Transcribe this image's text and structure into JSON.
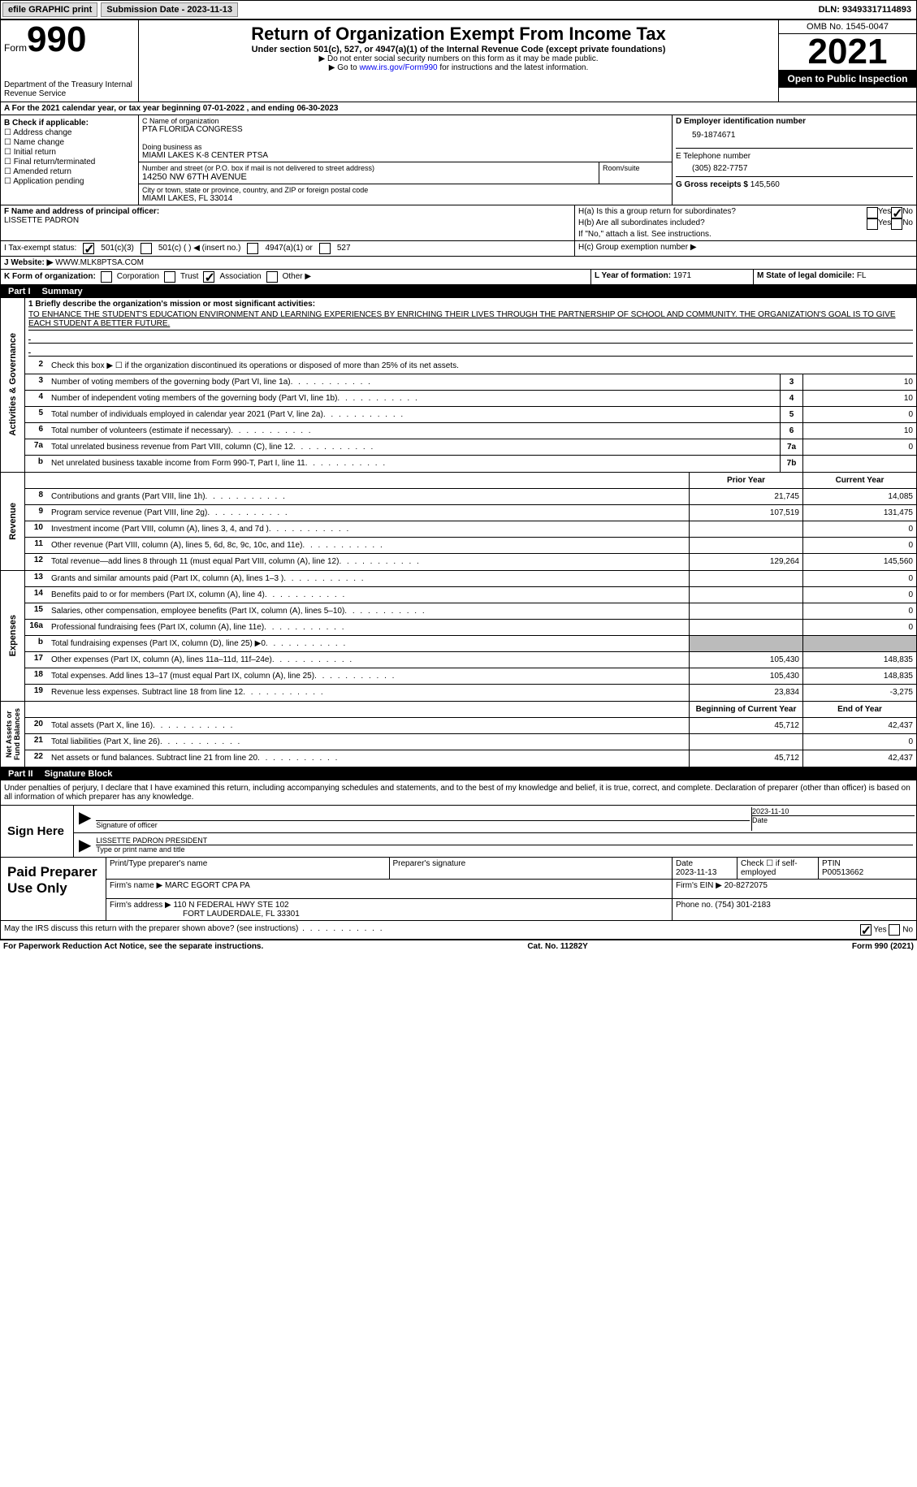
{
  "topbar": {
    "efile": "efile GRAPHIC print",
    "submission": "Submission Date - 2023-11-13",
    "dln": "DLN: 93493317114893"
  },
  "header": {
    "form_word": "Form",
    "form_num": "990",
    "dept": "Department of the Treasury\nInternal Revenue Service",
    "title": "Return of Organization Exempt From Income Tax",
    "sub1": "Under section 501(c), 527, or 4947(a)(1) of the Internal Revenue Code (except private foundations)",
    "sub2": "▶ Do not enter social security numbers on this form as it may be made public.",
    "sub3_pre": "▶ Go to ",
    "sub3_link": "www.irs.gov/Form990",
    "sub3_post": " for instructions and the latest information.",
    "omb": "OMB No. 1545-0047",
    "year": "2021",
    "open": "Open to Public Inspection"
  },
  "a_row": {
    "text": "A For the 2021 calendar year, or tax year beginning 07-01-2022    , and ending 06-30-2023"
  },
  "b": {
    "label": "B Check if applicable:",
    "opts": [
      "Address change",
      "Name change",
      "Initial return",
      "Final return/terminated",
      "Amended return",
      "Application pending"
    ]
  },
  "c": {
    "label": "C Name of organization",
    "org": "PTA FLORIDA CONGRESS",
    "dba_lbl": "Doing business as",
    "dba": "MIAMI LAKES K-8 CENTER PTSA",
    "addr_lbl": "Number and street (or P.O. box if mail is not delivered to street address)",
    "room_lbl": "Room/suite",
    "addr": "14250 NW 67TH AVENUE",
    "city_lbl": "City or town, state or province, country, and ZIP or foreign postal code",
    "city": "MIAMI LAKES, FL  33014"
  },
  "d": {
    "label": "D Employer identification number",
    "val": "59-1874671"
  },
  "e": {
    "label": "E Telephone number",
    "val": "(305) 822-7757"
  },
  "g": {
    "label": "G Gross receipts $",
    "val": "145,560"
  },
  "f": {
    "label": "F  Name and address of principal officer:",
    "name": "LISSETTE PADRON"
  },
  "h": {
    "a": "H(a)  Is this a group return for subordinates?",
    "b": "H(b)  Are all subordinates included?",
    "b_note": "If \"No,\" attach a list. See instructions.",
    "c": "H(c)  Group exemption number ▶",
    "yes": "Yes",
    "no": "No"
  },
  "i": {
    "label": "I  Tax-exempt status:",
    "o1": "501(c)(3)",
    "o2": "501(c) (  ) ◀ (insert no.)",
    "o3": "4947(a)(1) or",
    "o4": "527"
  },
  "j": {
    "label": "J  Website: ▶",
    "val": "WWW.MLK8PTSA.COM"
  },
  "k": {
    "label": "K Form of organization:",
    "o1": "Corporation",
    "o2": "Trust",
    "o3": "Association",
    "o4": "Other ▶"
  },
  "l": {
    "label": "L Year of formation:",
    "val": "1971"
  },
  "m": {
    "label": "M State of legal domicile:",
    "val": "FL"
  },
  "part1": {
    "num": "Part I",
    "title": "Summary"
  },
  "summary": {
    "q1": "1  Briefly describe the organization's mission or most significant activities:",
    "mission": "TO ENHANCE THE STUDENT'S EDUCATION ENVIRONMENT AND LEARNING EXPERIENCES BY ENRICHING THEIR LIVES THROUGH THE PARTNERSHIP OF SCHOOL AND COMMUNITY. THE ORGANIZATION'S GOAL IS TO GIVE EACH STUDENT A BETTER FUTURE.",
    "q2": "Check this box ▶ ☐ if the organization discontinued its operations or disposed of more than 25% of its net assets.",
    "lines": [
      {
        "n": "3",
        "t": "Number of voting members of the governing body (Part VI, line 1a)",
        "box": "3",
        "v": "10"
      },
      {
        "n": "4",
        "t": "Number of independent voting members of the governing body (Part VI, line 1b)",
        "box": "4",
        "v": "10"
      },
      {
        "n": "5",
        "t": "Total number of individuals employed in calendar year 2021 (Part V, line 2a)",
        "box": "5",
        "v": "0"
      },
      {
        "n": "6",
        "t": "Total number of volunteers (estimate if necessary)",
        "box": "6",
        "v": "10"
      },
      {
        "n": "7a",
        "t": "Total unrelated business revenue from Part VIII, column (C), line 12",
        "box": "7a",
        "v": "0"
      },
      {
        "n": "b",
        "t": "Net unrelated business taxable income from Form 990-T, Part I, line 11",
        "box": "7b",
        "v": ""
      }
    ],
    "col_prior": "Prior Year",
    "col_curr": "Current Year",
    "revenue": [
      {
        "n": "8",
        "t": "Contributions and grants (Part VIII, line 1h)",
        "p": "21,745",
        "c": "14,085"
      },
      {
        "n": "9",
        "t": "Program service revenue (Part VIII, line 2g)",
        "p": "107,519",
        "c": "131,475"
      },
      {
        "n": "10",
        "t": "Investment income (Part VIII, column (A), lines 3, 4, and 7d )",
        "p": "",
        "c": "0"
      },
      {
        "n": "11",
        "t": "Other revenue (Part VIII, column (A), lines 5, 6d, 8c, 9c, 10c, and 11e)",
        "p": "",
        "c": "0"
      },
      {
        "n": "12",
        "t": "Total revenue—add lines 8 through 11 (must equal Part VIII, column (A), line 12)",
        "p": "129,264",
        "c": "145,560"
      }
    ],
    "expenses": [
      {
        "n": "13",
        "t": "Grants and similar amounts paid (Part IX, column (A), lines 1–3 )",
        "p": "",
        "c": "0"
      },
      {
        "n": "14",
        "t": "Benefits paid to or for members (Part IX, column (A), line 4)",
        "p": "",
        "c": "0"
      },
      {
        "n": "15",
        "t": "Salaries, other compensation, employee benefits (Part IX, column (A), lines 5–10)",
        "p": "",
        "c": "0"
      },
      {
        "n": "16a",
        "t": "Professional fundraising fees (Part IX, column (A), line 11e)",
        "p": "",
        "c": "0"
      },
      {
        "n": "b",
        "t": "Total fundraising expenses (Part IX, column (D), line 25) ▶0",
        "p": "grey",
        "c": "grey"
      },
      {
        "n": "17",
        "t": "Other expenses (Part IX, column (A), lines 11a–11d, 11f–24e)",
        "p": "105,430",
        "c": "148,835"
      },
      {
        "n": "18",
        "t": "Total expenses. Add lines 13–17 (must equal Part IX, column (A), line 25)",
        "p": "105,430",
        "c": "148,835"
      },
      {
        "n": "19",
        "t": "Revenue less expenses. Subtract line 18 from line 12",
        "p": "23,834",
        "c": "-3,275"
      }
    ],
    "col_beg": "Beginning of Current Year",
    "col_end": "End of Year",
    "net": [
      {
        "n": "20",
        "t": "Total assets (Part X, line 16)",
        "p": "45,712",
        "c": "42,437"
      },
      {
        "n": "21",
        "t": "Total liabilities (Part X, line 26)",
        "p": "",
        "c": "0"
      },
      {
        "n": "22",
        "t": "Net assets or fund balances. Subtract line 21 from line 20",
        "p": "45,712",
        "c": "42,437"
      }
    ]
  },
  "part2": {
    "num": "Part II",
    "title": "Signature Block",
    "decl": "Under penalties of perjury, I declare that I have examined this return, including accompanying schedules and statements, and to the best of my knowledge and belief, it is true, correct, and complete. Declaration of preparer (other than officer) is based on all information of which preparer has any knowledge."
  },
  "sign": {
    "label": "Sign Here",
    "sig_lbl": "Signature of officer",
    "date_lbl": "Date",
    "date": "2023-11-10",
    "name": "LISSETTE PADRON  PRESIDENT",
    "name_lbl": "Type or print name and title"
  },
  "prep": {
    "label": "Paid Preparer Use Only",
    "c1": "Print/Type preparer's name",
    "c2": "Preparer's signature",
    "c3": "Date",
    "c3v": "2023-11-13",
    "c4": "Check ☐ if self-employed",
    "c5": "PTIN",
    "c5v": "P00513662",
    "firm_lbl": "Firm's name    ▶",
    "firm": "MARC EGORT CPA PA",
    "ein_lbl": "Firm's EIN ▶",
    "ein": "20-8272075",
    "addr_lbl": "Firm's address ▶",
    "addr": "110 N FEDERAL HWY STE 102",
    "addr2": "FORT LAUDERDALE, FL  33301",
    "phone_lbl": "Phone no.",
    "phone": "(754) 301-2183"
  },
  "discuss": "May the IRS discuss this return with the preparer shown above? (see instructions)",
  "paperwork": {
    "l": "For Paperwork Reduction Act Notice, see the separate instructions.",
    "c": "Cat. No. 11282Y",
    "r": "Form 990 (2021)"
  }
}
